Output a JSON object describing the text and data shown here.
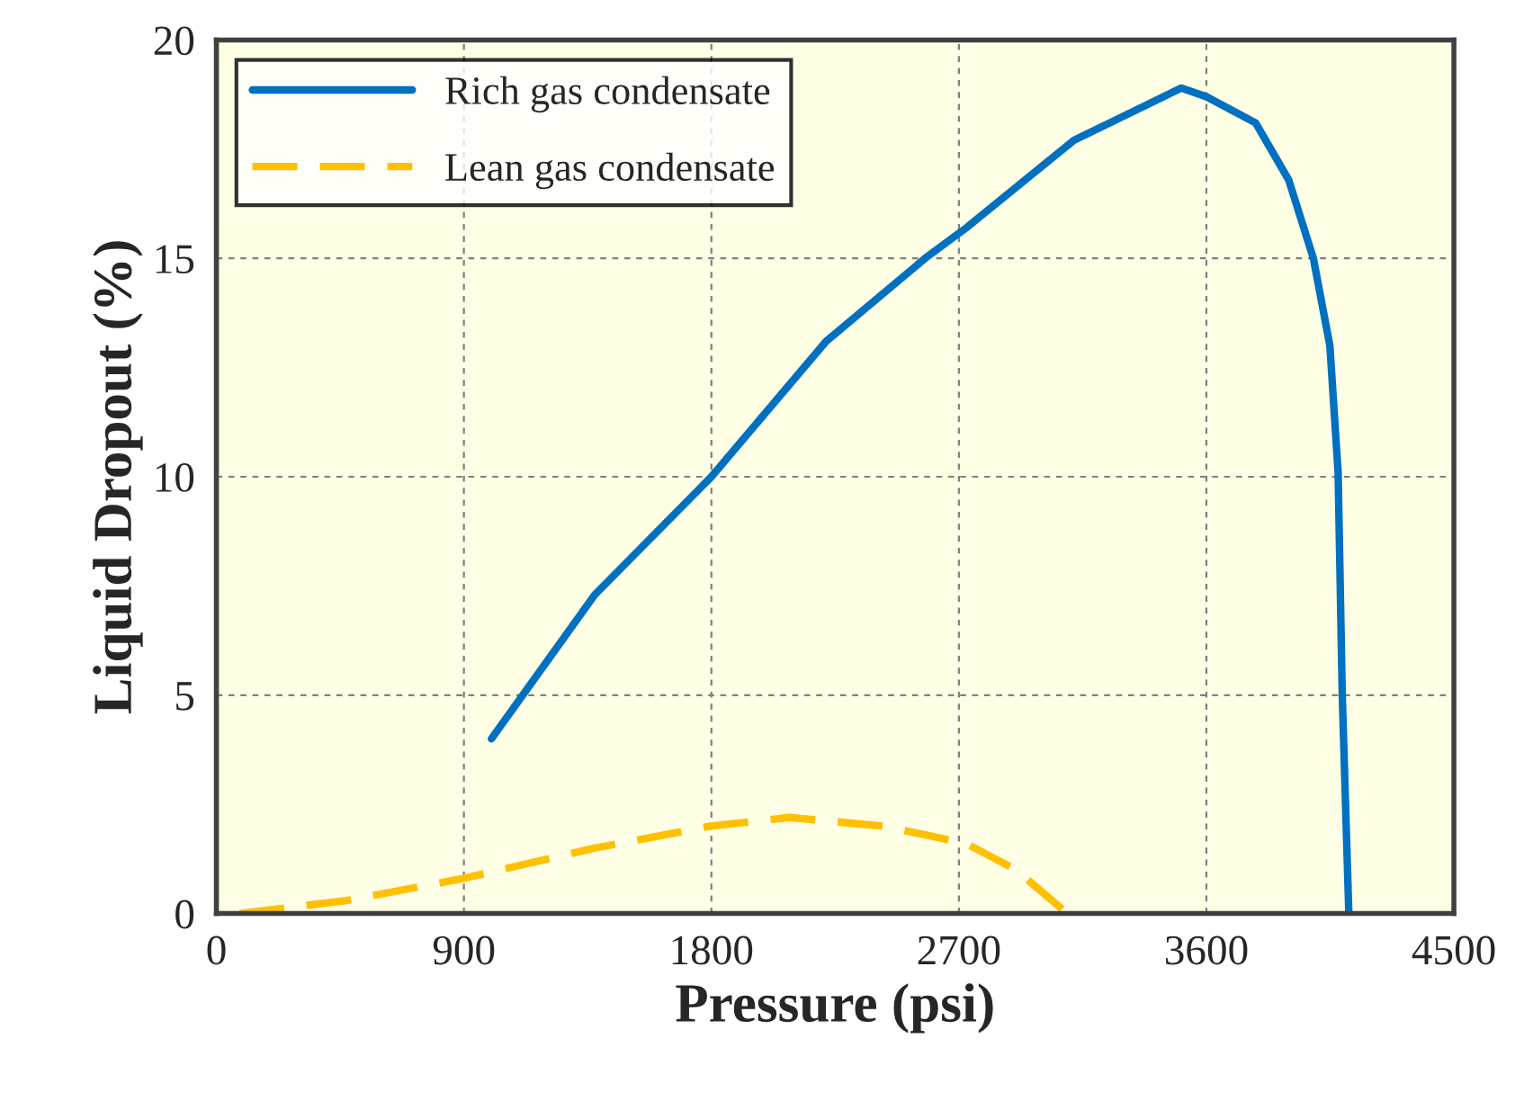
{
  "chart_data": {
    "type": "line",
    "xlabel": "Pressure (psi)",
    "ylabel": "Liquid Dropout (%)",
    "xlim": [
      0,
      4500
    ],
    "xticks": [
      0,
      900,
      1800,
      2700,
      3600,
      4500
    ],
    "ylim": [
      0,
      20
    ],
    "yticks": [
      0,
      5,
      10,
      15,
      20
    ],
    "grid": true,
    "legend": "top left",
    "series": [
      {
        "name": "Rich gas condensate",
        "color": "#0070c0",
        "line_style": "solid",
        "x": [
          1000,
          1376,
          1800,
          2217,
          2577,
          2727,
          3118,
          3509,
          3600,
          3779,
          3899,
          3989,
          4049,
          4079,
          4094,
          4118
        ],
        "values": [
          4,
          7.3,
          10,
          13.1,
          15,
          15.7,
          17.7,
          18.9,
          18.7,
          18.1,
          16.8,
          15,
          13,
          10.1,
          5,
          0
        ]
      },
      {
        "name": "Lean gas condensate",
        "color": "#ffc000",
        "line_style": "dashed",
        "x": [
          84,
          475,
          895,
          1376,
          1797,
          2082,
          2427,
          2727,
          2908,
          3094
        ],
        "values": [
          0,
          0.3,
          0.8,
          1.5,
          2.0,
          2.2,
          2.0,
          1.6,
          1.0,
          0
        ]
      }
    ]
  }
}
